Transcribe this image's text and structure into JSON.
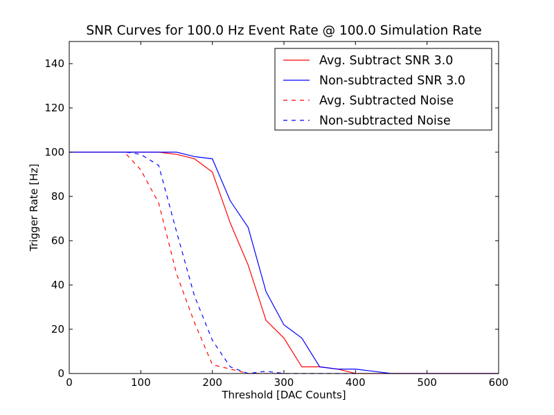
{
  "chart_data": {
    "type": "line",
    "title": "SNR Curves for 100.0 Hz Event Rate @ 100.0 Simulation Rate",
    "xlabel": "Threshold [DAC Counts]",
    "ylabel": "Trigger Rate [Hz]",
    "xlim": [
      0,
      600
    ],
    "ylim": [
      0,
      150
    ],
    "xticks": [
      0,
      100,
      200,
      300,
      400,
      500,
      600
    ],
    "yticks": [
      0,
      20,
      40,
      60,
      80,
      100,
      120,
      140
    ],
    "grid": false,
    "legend_position": "top-right",
    "series": [
      {
        "name": "Avg. Subtract SNR 3.0",
        "color": "#ff0000",
        "style": "solid",
        "x": [
          0,
          25,
          50,
          75,
          100,
          125,
          150,
          175,
          200,
          225,
          250,
          275,
          300,
          325,
          350,
          375,
          400,
          425,
          450,
          475,
          500,
          525,
          550,
          575,
          600
        ],
        "y": [
          100,
          100,
          100,
          100,
          100,
          100,
          99,
          97,
          91,
          68,
          49,
          24,
          16,
          3,
          3,
          2,
          0,
          0,
          0,
          0,
          0,
          0,
          0,
          0,
          0
        ]
      },
      {
        "name": "Non-subtracted SNR 3.0",
        "color": "#0000ff",
        "style": "solid",
        "x": [
          0,
          25,
          50,
          75,
          100,
          125,
          150,
          175,
          200,
          225,
          250,
          275,
          300,
          325,
          350,
          375,
          400,
          425,
          450,
          475,
          500,
          525,
          550,
          575,
          600
        ],
        "y": [
          100,
          100,
          100,
          100,
          100,
          100,
          100,
          98,
          97,
          78,
          66,
          37,
          22,
          16,
          3,
          2,
          2,
          1,
          0,
          0,
          0,
          0,
          0,
          0,
          0
        ]
      },
      {
        "name": "Avg. Subtracted Noise",
        "color": "#ff0000",
        "style": "dashed",
        "x": [
          80,
          100,
          125,
          150,
          175,
          200,
          225,
          250,
          275,
          300
        ],
        "y": [
          99,
          92,
          77,
          45,
          23,
          4,
          2,
          0,
          0,
          0
        ]
      },
      {
        "name": "Non-subtracted Noise",
        "color": "#0000ff",
        "style": "dashed",
        "x": [
          80,
          100,
          125,
          150,
          175,
          200,
          225,
          250,
          275,
          300,
          325,
          350,
          375,
          400
        ],
        "y": [
          100,
          99,
          94,
          64,
          35,
          15,
          3,
          0,
          1,
          0,
          0,
          0,
          0,
          0
        ]
      }
    ]
  }
}
